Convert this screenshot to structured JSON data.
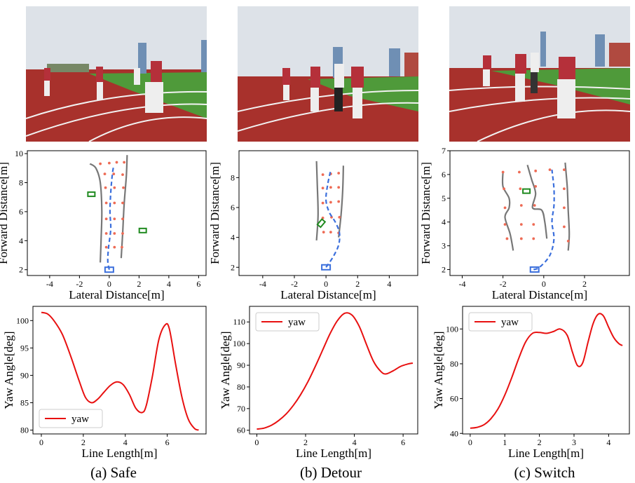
{
  "captions": {
    "a": "(a) Safe",
    "b": "(b) Detour",
    "c": "(c) Switch"
  },
  "colors": {
    "track": "#a8312c",
    "grass": "#4f9a3a",
    "sky": "#dde2e8",
    "path": "#3b6fdc",
    "wall": "#777777",
    "people": "#ee6b55",
    "obstacle": "#1f8a1f",
    "yaw": "#e81010"
  },
  "chart_data": [
    {
      "id": "a-traj",
      "type": "scatter",
      "xlabel": "Lateral Distance[m]",
      "ylabel": "Forward  Distance[m]",
      "xlim": [
        -5.5,
        6.5
      ],
      "ylim": [
        1.6,
        10.2
      ],
      "xticks": [
        -4,
        -2,
        0,
        2,
        4,
        6
      ],
      "yticks": [
        2,
        4,
        6,
        8,
        10
      ],
      "walls": [
        [
          [
            -1.3,
            9.3
          ],
          [
            -0.9,
            9.0
          ],
          [
            -0.6,
            8.0
          ],
          [
            -0.5,
            6.0
          ],
          [
            -0.55,
            4.0
          ],
          [
            -0.6,
            2.5
          ]
        ],
        [
          [
            1.2,
            9.9
          ],
          [
            1.15,
            8.5
          ],
          [
            1.0,
            6.5
          ],
          [
            0.9,
            4.5
          ],
          [
            0.8,
            2.8
          ]
        ]
      ],
      "path": [
        [
          0.0,
          2.0
        ],
        [
          -0.1,
          2.6
        ],
        [
          -0.05,
          3.5
        ],
        [
          0.1,
          4.8
        ],
        [
          0.05,
          6.0
        ],
        [
          0.1,
          7.3
        ],
        [
          0.2,
          8.5
        ],
        [
          0.3,
          9.2
        ]
      ],
      "people": [
        [
          -0.6,
          9.3
        ],
        [
          0.0,
          9.35
        ],
        [
          0.5,
          9.4
        ],
        [
          1.0,
          9.4
        ],
        [
          -0.3,
          8.6
        ],
        [
          0.3,
          8.6
        ],
        [
          0.9,
          8.55
        ],
        [
          -0.25,
          7.65
        ],
        [
          0.35,
          7.65
        ],
        [
          0.95,
          7.65
        ],
        [
          -0.2,
          6.6
        ],
        [
          0.35,
          6.6
        ],
        [
          0.9,
          6.6
        ],
        [
          -0.2,
          5.5
        ],
        [
          0.35,
          5.5
        ],
        [
          0.9,
          5.5
        ],
        [
          -0.2,
          4.5
        ],
        [
          0.35,
          4.5
        ],
        [
          0.9,
          4.5
        ],
        [
          -0.2,
          3.55
        ],
        [
          0.35,
          3.55
        ],
        [
          0.85,
          3.55
        ]
      ],
      "obstacles": [
        {
          "x": -1.2,
          "y": 7.2,
          "angle": 0
        },
        {
          "x": 2.25,
          "y": 4.7,
          "angle": 0
        }
      ],
      "robot": {
        "x": 0.0,
        "y": 2.0,
        "angle": 0
      }
    },
    {
      "id": "b-traj",
      "type": "scatter",
      "xlabel": "Lateral Distance[m]",
      "ylabel": "Forward  Distance[m]",
      "xlim": [
        -5.5,
        5.8
      ],
      "ylim": [
        1.45,
        9.8
      ],
      "xticks": [
        -4,
        -2,
        0,
        2,
        4
      ],
      "yticks": [
        2,
        4,
        6,
        8
      ],
      "walls": [
        [
          [
            -0.6,
            9.1
          ],
          [
            -0.55,
            7.5
          ],
          [
            -0.5,
            5.5
          ],
          [
            -0.6,
            3.8
          ]
        ],
        [
          [
            1.1,
            8.8
          ],
          [
            1.05,
            7.0
          ],
          [
            0.95,
            5.5
          ],
          [
            0.8,
            4.0
          ]
        ]
      ],
      "path": [
        [
          0.0,
          2.0
        ],
        [
          0.45,
          2.7
        ],
        [
          0.8,
          3.5
        ],
        [
          0.85,
          4.3
        ],
        [
          0.6,
          5.0
        ],
        [
          0.2,
          5.7
        ],
        [
          0.0,
          6.5
        ],
        [
          0.1,
          7.5
        ],
        [
          0.3,
          8.5
        ]
      ],
      "people": [
        [
          -0.2,
          8.2
        ],
        [
          0.3,
          8.25
        ],
        [
          0.8,
          8.3
        ],
        [
          -0.2,
          7.3
        ],
        [
          0.3,
          7.35
        ],
        [
          0.8,
          7.35
        ],
        [
          -0.2,
          6.3
        ],
        [
          0.3,
          6.35
        ],
        [
          0.8,
          6.4
        ],
        [
          -0.2,
          5.3
        ],
        [
          0.35,
          5.35
        ],
        [
          0.85,
          5.35
        ],
        [
          -0.15,
          4.35
        ],
        [
          0.3,
          4.35
        ],
        [
          0.8,
          4.3
        ]
      ],
      "obstacles": [
        {
          "x": -0.3,
          "y": 4.95,
          "angle": 50
        }
      ],
      "robot": {
        "x": 0.0,
        "y": 2.0,
        "angle": 0
      }
    },
    {
      "id": "c-traj",
      "type": "scatter",
      "xlabel": "Lateral Distance[m]",
      "ylabel": "Forward  Distance[m]",
      "xlim": [
        -4.6,
        4.2
      ],
      "ylim": [
        1.75,
        7.0
      ],
      "xticks": [
        -4,
        -2,
        0,
        2
      ],
      "yticks": [
        2,
        3,
        4,
        5,
        6,
        7
      ],
      "walls": [
        [
          [
            -2.0,
            6.1
          ],
          [
            -2.0,
            5.5
          ],
          [
            -1.7,
            5.0
          ],
          [
            -1.7,
            4.6
          ],
          [
            -1.9,
            4.2
          ],
          [
            -1.65,
            3.5
          ],
          [
            -1.5,
            2.8
          ]
        ],
        [
          [
            -0.8,
            6.4
          ],
          [
            -0.6,
            5.8
          ],
          [
            -0.4,
            5.2
          ],
          [
            -0.55,
            4.6
          ],
          [
            -0.1,
            4.5
          ],
          [
            0.05,
            4.0
          ],
          [
            0.15,
            3.3
          ]
        ],
        [
          [
            1.05,
            6.5
          ],
          [
            1.15,
            5.5
          ],
          [
            1.2,
            4.5
          ],
          [
            1.25,
            3.5
          ],
          [
            1.2,
            2.8
          ]
        ]
      ],
      "path": [
        [
          -0.5,
          2.0
        ],
        [
          -0.2,
          2.1
        ],
        [
          0.3,
          2.6
        ],
        [
          0.5,
          3.3
        ],
        [
          0.4,
          4.0
        ],
        [
          0.5,
          4.7
        ],
        [
          0.5,
          5.4
        ],
        [
          0.4,
          6.2
        ]
      ],
      "people": [
        [
          -2.0,
          6.1
        ],
        [
          -1.2,
          6.1
        ],
        [
          -0.4,
          6.15
        ],
        [
          0.3,
          6.2
        ],
        [
          1.0,
          6.2
        ],
        [
          -1.95,
          5.4
        ],
        [
          -1.15,
          5.4
        ],
        [
          -0.4,
          5.5
        ],
        [
          1.0,
          5.4
        ],
        [
          -1.9,
          4.6
        ],
        [
          -1.1,
          4.7
        ],
        [
          -0.45,
          4.7
        ],
        [
          1.0,
          4.6
        ],
        [
          -1.9,
          3.9
        ],
        [
          -1.1,
          3.9
        ],
        [
          -0.5,
          3.9
        ],
        [
          1.0,
          3.8
        ],
        [
          -1.8,
          3.3
        ],
        [
          -1.1,
          3.3
        ],
        [
          -0.5,
          3.3
        ],
        [
          1.2,
          3.2
        ]
      ],
      "obstacles": [
        {
          "x": -0.85,
          "y": 5.3,
          "angle": 0
        }
      ],
      "robot": {
        "x": -0.45,
        "y": 2.0,
        "angle": 0
      }
    },
    {
      "id": "a-yaw",
      "type": "line",
      "xlabel": "Line Length[m]",
      "ylabel": "Yaw Angle[deg]",
      "xlim": [
        -0.4,
        7.85
      ],
      "ylim": [
        79.3,
        102.6
      ],
      "xticks": [
        0,
        2,
        4,
        6
      ],
      "yticks": [
        80,
        85,
        90,
        95,
        100
      ],
      "legend": {
        "label": "yaw",
        "loc": "lower-left"
      },
      "x": [
        0,
        0.3,
        0.6,
        1.0,
        1.4,
        1.8,
        2.1,
        2.4,
        2.7,
        3.0,
        3.3,
        3.6,
        3.9,
        4.2,
        4.5,
        4.8,
        5.0,
        5.3,
        5.6,
        5.9,
        6.1,
        6.4,
        6.7,
        7.0,
        7.3,
        7.5
      ],
      "y": [
        101.5,
        101.2,
        100.0,
        97.5,
        93.5,
        89.0,
        86.0,
        85.0,
        85.7,
        87.0,
        88.2,
        88.8,
        88.3,
        86.5,
        84.0,
        83.2,
        84.5,
        90.0,
        96.5,
        99.2,
        98.5,
        92.0,
        86.0,
        82.0,
        80.3,
        80.0
      ]
    },
    {
      "id": "b-yaw",
      "type": "line",
      "xlabel": "Line Length[m]",
      "ylabel": "Yaw Angle[deg]",
      "xlim": [
        -0.3,
        6.6
      ],
      "ylim": [
        58.3,
        117.2
      ],
      "xticks": [
        0,
        2,
        4,
        6
      ],
      "yticks": [
        60,
        70,
        80,
        90,
        100,
        110
      ],
      "legend": {
        "label": "yaw",
        "loc": "upper-left"
      },
      "x": [
        0,
        0.3,
        0.6,
        0.9,
        1.2,
        1.5,
        1.8,
        2.1,
        2.4,
        2.7,
        3.0,
        3.3,
        3.6,
        3.9,
        4.2,
        4.5,
        4.8,
        5.1,
        5.3,
        5.6,
        5.9,
        6.2,
        6.4
      ],
      "y": [
        60.5,
        61.0,
        62.3,
        64.5,
        67.5,
        71.5,
        76.5,
        82.5,
        89.5,
        97.0,
        104.5,
        110.5,
        114.0,
        113.2,
        108.0,
        99.5,
        91.5,
        87.0,
        86.0,
        87.5,
        89.5,
        90.6,
        91.0
      ]
    },
    {
      "id": "c-yaw",
      "type": "line",
      "xlabel": "Line Length[m]",
      "ylabel": "Yaw Angle[deg]",
      "xlim": [
        -0.22,
        4.6
      ],
      "ylim": [
        39.7,
        113.0
      ],
      "xticks": [
        0,
        1,
        2,
        3,
        4
      ],
      "yticks": [
        40,
        60,
        80,
        100
      ],
      "legend": {
        "label": "yaw",
        "loc": "upper-left"
      },
      "x": [
        0,
        0.2,
        0.4,
        0.6,
        0.8,
        1.0,
        1.2,
        1.4,
        1.6,
        1.8,
        2.0,
        2.2,
        2.4,
        2.6,
        2.8,
        2.95,
        3.1,
        3.25,
        3.4,
        3.55,
        3.7,
        3.85,
        4.0,
        4.15,
        4.3,
        4.4
      ],
      "y": [
        43.0,
        43.5,
        45.0,
        48.5,
        54.0,
        62.0,
        72.0,
        83.0,
        92.5,
        97.5,
        98.0,
        97.5,
        98.5,
        100.0,
        96.5,
        87.0,
        79.0,
        80.5,
        92.0,
        103.0,
        108.5,
        107.5,
        101.0,
        95.0,
        91.5,
        90.5
      ]
    }
  ]
}
